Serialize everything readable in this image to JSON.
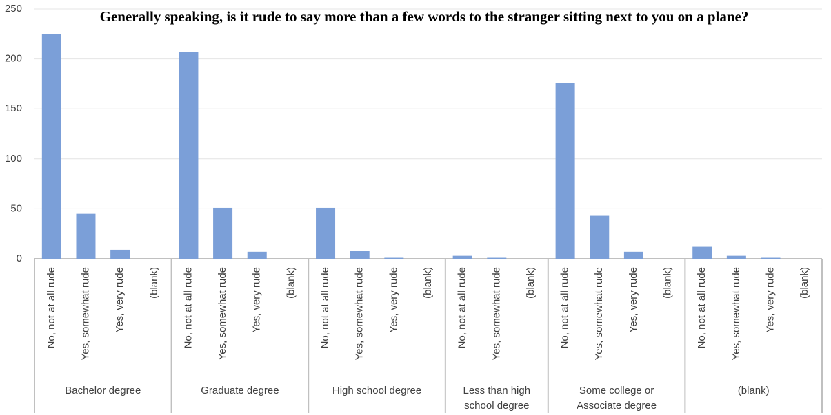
{
  "chart_data": {
    "type": "grouped-bar",
    "title": "Generally speaking, is it rude to say more than a few words to the stranger sitting next to you on a plane?",
    "color": "#7b9fd8",
    "groups": [
      {
        "name": "Bachelor degree",
        "categories": [
          "No, not at all rude",
          "Yes, somewhat rude",
          "Yes, very rude",
          "(blank)"
        ],
        "values": [
          225,
          45,
          9,
          0
        ]
      },
      {
        "name": "Graduate degree",
        "categories": [
          "No, not at all rude",
          "Yes, somewhat rude",
          "Yes, very rude",
          "(blank)"
        ],
        "values": [
          207,
          51,
          7,
          0
        ]
      },
      {
        "name": "High school degree",
        "categories": [
          "No, not at all rude",
          "Yes, somewhat rude",
          "Yes, very rude",
          "(blank)"
        ],
        "values": [
          51,
          8,
          1,
          0
        ]
      },
      {
        "name": "Less than high school degree",
        "categories": [
          "No, not at all rude",
          "Yes, somewhat rude",
          "(blank)"
        ],
        "values": [
          3,
          1,
          0
        ]
      },
      {
        "name": "Some college or Associate degree",
        "categories": [
          "No, not at all rude",
          "Yes, somewhat rude",
          "Yes, very rude",
          "(blank)"
        ],
        "values": [
          176,
          43,
          7,
          0
        ]
      },
      {
        "name": "(blank)",
        "categories": [
          "No, not at all rude",
          "Yes, somewhat rude",
          "Yes, very rude",
          "(blank)"
        ],
        "values": [
          12,
          3,
          1,
          0
        ]
      }
    ],
    "ylim": [
      0,
      250
    ],
    "yticks": [
      0,
      50,
      100,
      150,
      200,
      250
    ],
    "grid": true
  }
}
